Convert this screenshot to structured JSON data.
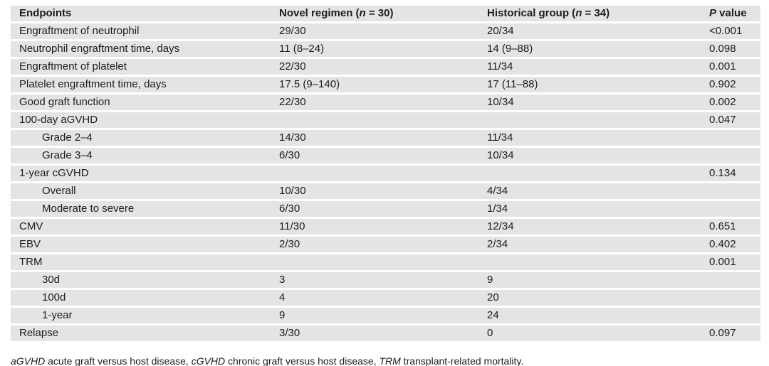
{
  "colors": {
    "row_bg": "#e4e4e4",
    "text": "#1c1c1c",
    "separator": "#ffffff"
  },
  "table": {
    "header": {
      "endpoints": "Endpoints",
      "novel_prefix": "Novel regimen (",
      "novel_n": "n",
      "novel_suffix": " = 30)",
      "historical_prefix": "Historical group (",
      "historical_n": "n",
      "historical_suffix": " = 34)",
      "p_italic": "P",
      "p_rest": " value"
    },
    "rows": [
      {
        "label": "Engraftment of neutrophil",
        "indent": false,
        "novel": "29/30",
        "historical": "20/34",
        "p": "<0.001"
      },
      {
        "label": "Neutrophil engraftment time, days",
        "indent": false,
        "novel": "11 (8–24)",
        "historical": "14 (9–88)",
        "p": "0.098"
      },
      {
        "label": "Engraftment of platelet",
        "indent": false,
        "novel": "22/30",
        "historical": "11/34",
        "p": "0.001"
      },
      {
        "label": "Platelet engraftment time, days",
        "indent": false,
        "novel": "17.5 (9–140)",
        "historical": "17 (11–88)",
        "p": "0.902"
      },
      {
        "label": "Good graft function",
        "indent": false,
        "novel": "22/30",
        "historical": "10/34",
        "p": "0.002"
      },
      {
        "label": "100-day aGVHD",
        "indent": false,
        "novel": "",
        "historical": "",
        "p": "0.047"
      },
      {
        "label": "Grade 2–4",
        "indent": true,
        "novel": "14/30",
        "historical": "11/34",
        "p": ""
      },
      {
        "label": "Grade 3–4",
        "indent": true,
        "novel": "6/30",
        "historical": "10/34",
        "p": ""
      },
      {
        "label": "1-year cGVHD",
        "indent": false,
        "novel": "",
        "historical": "",
        "p": "0.134"
      },
      {
        "label": "Overall",
        "indent": true,
        "novel": "10/30",
        "historical": "4/34",
        "p": ""
      },
      {
        "label": "Moderate to severe",
        "indent": true,
        "novel": "6/30",
        "historical": "1/34",
        "p": ""
      },
      {
        "label": "CMV",
        "indent": false,
        "novel": "11/30",
        "historical": "12/34",
        "p": "0.651"
      },
      {
        "label": "EBV",
        "indent": false,
        "novel": "2/30",
        "historical": "2/34",
        "p": "0.402"
      },
      {
        "label": "TRM",
        "indent": false,
        "novel": "",
        "historical": "",
        "p": "0.001"
      },
      {
        "label": "30d",
        "indent": true,
        "novel": "3",
        "historical": "9",
        "p": ""
      },
      {
        "label": "100d",
        "indent": true,
        "novel": "4",
        "historical": "20",
        "p": ""
      },
      {
        "label": "1-year",
        "indent": true,
        "novel": "9",
        "historical": "24",
        "p": ""
      },
      {
        "label": "Relapse",
        "indent": false,
        "novel": "3/30",
        "historical": "0",
        "p": "0.097"
      }
    ]
  },
  "footnote": {
    "abbr1": "aGVHD",
    "def1": " acute graft versus host disease, ",
    "abbr2": "cGVHD",
    "def2": " chronic graft versus host disease, ",
    "abbr3": "TRM",
    "def3": " transplant-related mortality."
  }
}
